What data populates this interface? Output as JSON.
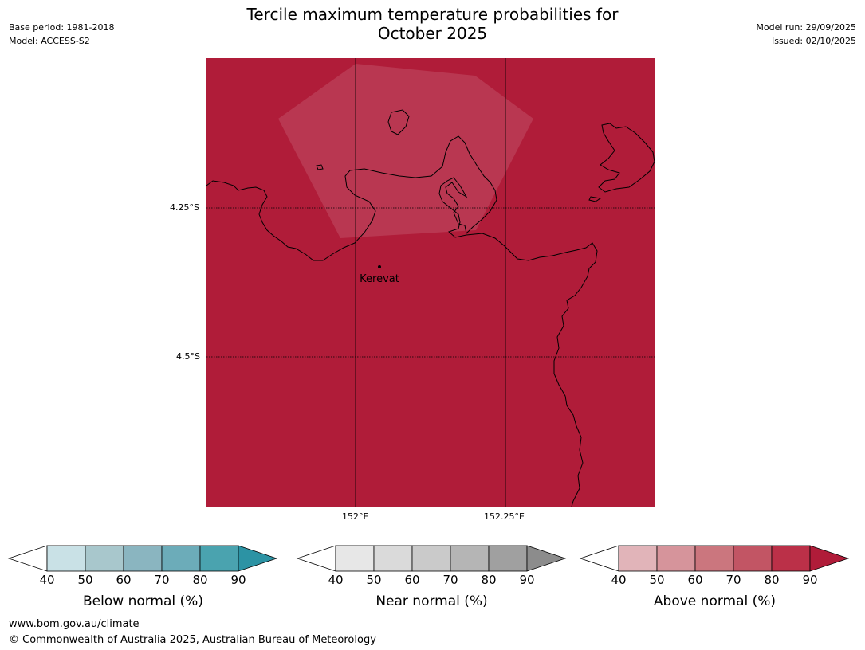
{
  "header": {
    "title_line1": "Tercile maximum temperature probabilities for",
    "title_line2": "October 2025",
    "base_period": "Base period: 1981-2018",
    "model": "Model: ACCESS-S2",
    "model_run": "Model run: 29/09/2025",
    "issued": "Issued: 02/10/2025"
  },
  "map": {
    "background_color": "#b01c39",
    "lat_labels": [
      "4.25°S",
      "4.5°S"
    ],
    "lon_labels": [
      "152°E",
      "152.25°E"
    ],
    "place_label": "Kerevat"
  },
  "colorbars": [
    {
      "name": "below",
      "title": "Below normal (%)",
      "ticks": [
        "40",
        "50",
        "60",
        "70",
        "80",
        "90"
      ],
      "colors": [
        "#ffffff",
        "#c9e1e6",
        "#a8c7cc",
        "#8ab5c0",
        "#6cacb9",
        "#4aa3af",
        "#2c93a4"
      ]
    },
    {
      "name": "near",
      "title": "Near normal (%)",
      "ticks": [
        "40",
        "50",
        "60",
        "70",
        "80",
        "90"
      ],
      "colors": [
        "#ffffff",
        "#e7e7e7",
        "#dadada",
        "#cacaca",
        "#b5b5b5",
        "#a0a0a0",
        "#8c8c8c"
      ]
    },
    {
      "name": "above",
      "title": "Above normal (%)",
      "ticks": [
        "40",
        "50",
        "60",
        "70",
        "80",
        "90"
      ],
      "colors": [
        "#ffffff",
        "#e1b4b9",
        "#d6949b",
        "#cb767e",
        "#c25564",
        "#bb3048",
        "#b01c39"
      ]
    }
  ],
  "footer": {
    "url": "www.bom.gov.au/climate",
    "copyright": "© Commonwealth of Australia 2025, Australian Bureau of Meteorology"
  }
}
